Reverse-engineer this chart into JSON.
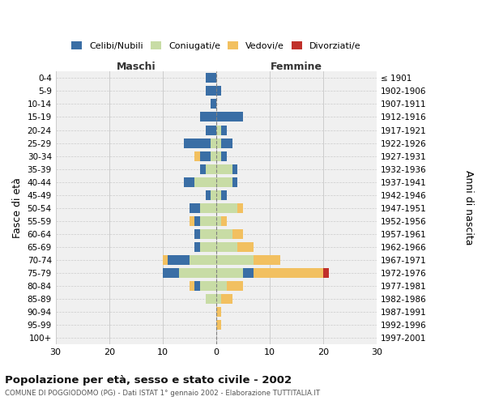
{
  "age_groups": [
    "0-4",
    "5-9",
    "10-14",
    "15-19",
    "20-24",
    "25-29",
    "30-34",
    "35-39",
    "40-44",
    "45-49",
    "50-54",
    "55-59",
    "60-64",
    "65-69",
    "70-74",
    "75-79",
    "80-84",
    "85-89",
    "90-94",
    "95-99",
    "100+"
  ],
  "birth_years": [
    "1997-2001",
    "1992-1996",
    "1987-1991",
    "1982-1986",
    "1977-1981",
    "1972-1976",
    "1967-1971",
    "1962-1966",
    "1957-1961",
    "1952-1956",
    "1947-1951",
    "1942-1946",
    "1937-1941",
    "1932-1936",
    "1927-1931",
    "1922-1926",
    "1917-1921",
    "1912-1916",
    "1907-1911",
    "1902-1906",
    "≤ 1901"
  ],
  "maschi": {
    "celibi": [
      2,
      2,
      1,
      3,
      2,
      5,
      2,
      1,
      2,
      1,
      2,
      1,
      1,
      1,
      4,
      3,
      1,
      0,
      0,
      0,
      0
    ],
    "coniugati": [
      0,
      0,
      0,
      0,
      0,
      1,
      1,
      2,
      4,
      1,
      3,
      3,
      3,
      3,
      5,
      7,
      3,
      2,
      0,
      0,
      0
    ],
    "vedovi": [
      0,
      0,
      0,
      0,
      0,
      0,
      1,
      0,
      0,
      0,
      0,
      1,
      0,
      0,
      1,
      0,
      1,
      0,
      0,
      0,
      0
    ],
    "divorziati": [
      0,
      0,
      0,
      0,
      0,
      0,
      0,
      0,
      0,
      0,
      0,
      0,
      0,
      0,
      0,
      0,
      0,
      0,
      0,
      0,
      0
    ]
  },
  "femmine": {
    "nubili": [
      0,
      1,
      0,
      5,
      1,
      2,
      1,
      1,
      1,
      1,
      0,
      0,
      0,
      0,
      0,
      2,
      0,
      0,
      0,
      0,
      0
    ],
    "coniugate": [
      0,
      0,
      0,
      0,
      1,
      1,
      1,
      3,
      3,
      1,
      4,
      1,
      3,
      4,
      7,
      5,
      2,
      1,
      0,
      0,
      0
    ],
    "vedove": [
      0,
      0,
      0,
      0,
      0,
      0,
      0,
      0,
      0,
      0,
      1,
      1,
      2,
      3,
      5,
      13,
      3,
      2,
      1,
      1,
      0
    ],
    "divorziate": [
      0,
      0,
      0,
      0,
      0,
      0,
      0,
      0,
      0,
      0,
      0,
      0,
      0,
      0,
      0,
      1,
      0,
      0,
      0,
      0,
      0
    ]
  },
  "color_celibi": "#3a6ea5",
  "color_coniugati": "#c8dca5",
  "color_vedovi": "#f2c060",
  "color_divorziati": "#c0302a",
  "xlim": 30,
  "title": "Popolazione per età, sesso e stato civile - 2002",
  "subtitle": "COMUNE DI POGGIODOMO (PG) - Dati ISTAT 1° gennaio 2002 - Elaborazione TUTTITALIA.IT",
  "ylabel_left": "Fasce di età",
  "ylabel_right": "Anni di nascita",
  "xlabel_maschi": "Maschi",
  "xlabel_femmine": "Femmine",
  "bg_color": "#f0f0f0",
  "grid_color": "#cccccc"
}
